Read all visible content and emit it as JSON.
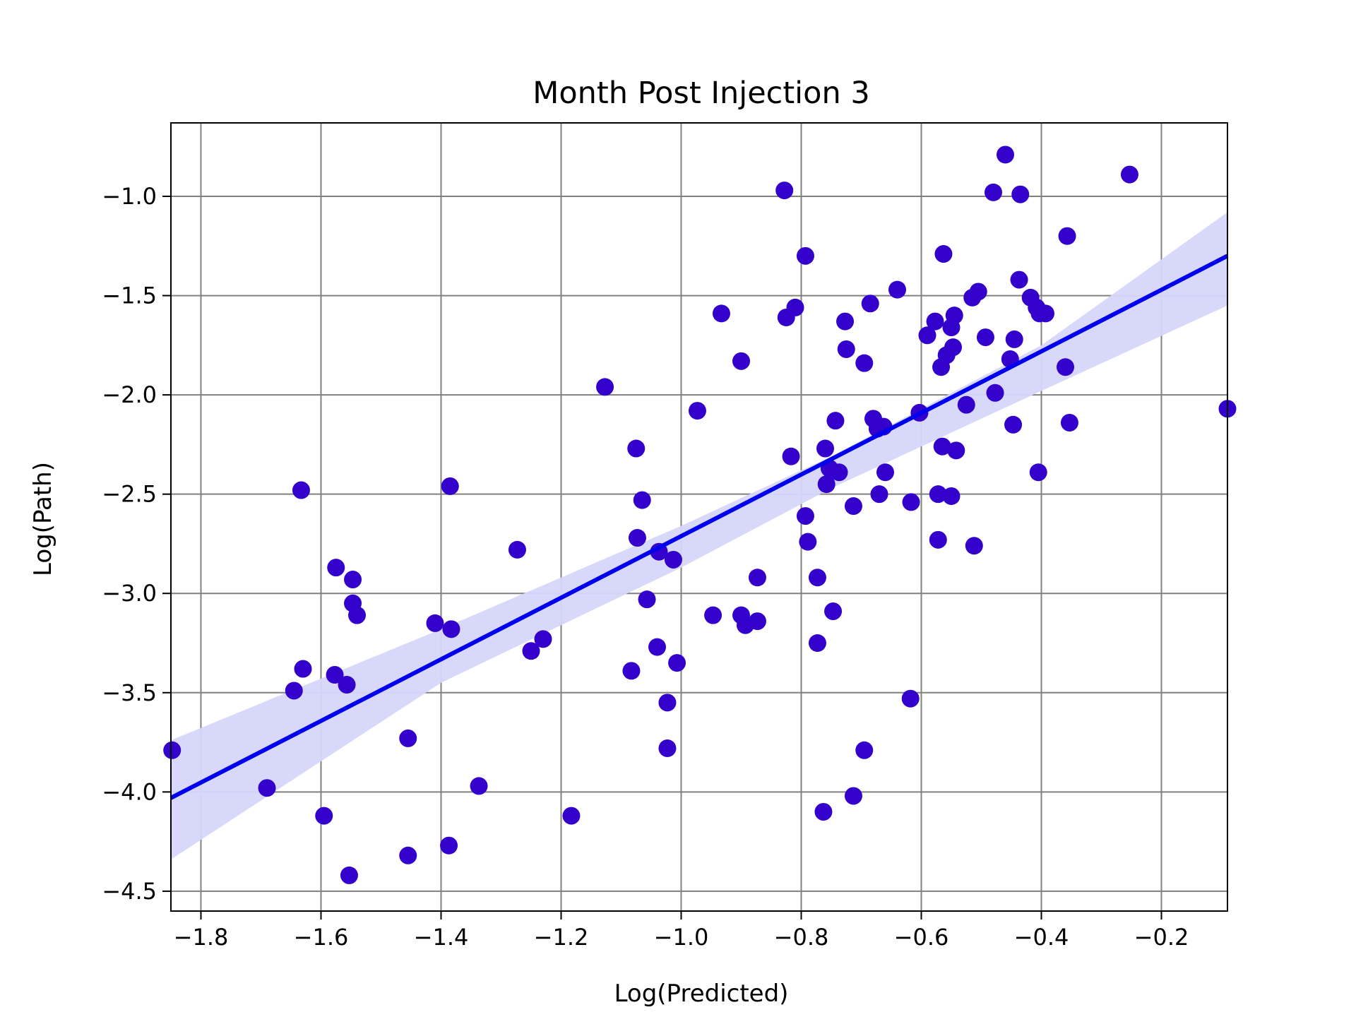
{
  "chart_data": {
    "type": "scatter",
    "title": "Month Post Injection 3",
    "xlabel": "Log(Predicted)",
    "ylabel": "Log(Path)",
    "xlim": [
      -1.85,
      -0.09
    ],
    "ylim": [
      -4.6,
      -0.63
    ],
    "xticks": [
      -1.8,
      -1.6,
      -1.4,
      -1.2,
      -1.0,
      -0.8,
      -0.6,
      -0.4,
      -0.2
    ],
    "xtick_labels": [
      "−1.8",
      "−1.6",
      "−1.4",
      "−1.2",
      "−1.0",
      "−0.8",
      "−0.6",
      "−0.4",
      "−0.2"
    ],
    "yticks": [
      -1.0,
      -1.5,
      -2.0,
      -2.5,
      -3.0,
      -3.5,
      -4.0,
      -4.5
    ],
    "ytick_labels": [
      "−1.0",
      "−1.5",
      "−2.0",
      "−2.5",
      "−3.0",
      "−3.5",
      "−4.0",
      "−4.5"
    ],
    "grid": true,
    "colors": {
      "points": "#3300cc",
      "fit_line": "#0000ee",
      "band": "#d6d6fb",
      "grid": "#808080"
    },
    "fit_line": {
      "x": [
        -1.85,
        -0.09
      ],
      "y": [
        -4.03,
        -1.3
      ]
    },
    "confidence_band": {
      "x": [
        -1.85,
        -1.4,
        -1.0,
        -0.75,
        -0.6,
        -0.4,
        -0.09
      ],
      "upper": [
        -3.74,
        -3.18,
        -2.66,
        -2.31,
        -2.07,
        -1.75,
        -1.08
      ],
      "lower": [
        -4.34,
        -3.45,
        -2.87,
        -2.47,
        -2.26,
        -1.98,
        -1.55
      ]
    },
    "points": [
      {
        "x": -1.848,
        "y": -3.79
      },
      {
        "x": -1.69,
        "y": -3.98
      },
      {
        "x": -1.645,
        "y": -3.49
      },
      {
        "x": -1.633,
        "y": -2.48
      },
      {
        "x": -1.63,
        "y": -3.38
      },
      {
        "x": -1.595,
        "y": -4.12
      },
      {
        "x": -1.577,
        "y": -3.41
      },
      {
        "x": -1.575,
        "y": -2.87
      },
      {
        "x": -1.557,
        "y": -3.46
      },
      {
        "x": -1.553,
        "y": -4.42
      },
      {
        "x": -1.547,
        "y": -2.93
      },
      {
        "x": -1.547,
        "y": -3.05
      },
      {
        "x": -1.54,
        "y": -3.11
      },
      {
        "x": -1.455,
        "y": -3.73
      },
      {
        "x": -1.455,
        "y": -4.32
      },
      {
        "x": -1.41,
        "y": -3.15
      },
      {
        "x": -1.387,
        "y": -4.27
      },
      {
        "x": -1.385,
        "y": -2.46
      },
      {
        "x": -1.383,
        "y": -3.18
      },
      {
        "x": -1.337,
        "y": -3.97
      },
      {
        "x": -1.273,
        "y": -2.78
      },
      {
        "x": -1.25,
        "y": -3.29
      },
      {
        "x": -1.23,
        "y": -3.23
      },
      {
        "x": -1.183,
        "y": -4.12
      },
      {
        "x": -1.127,
        "y": -1.96
      },
      {
        "x": -1.083,
        "y": -3.39
      },
      {
        "x": -1.075,
        "y": -2.27
      },
      {
        "x": -1.073,
        "y": -2.72
      },
      {
        "x": -1.065,
        "y": -2.53
      },
      {
        "x": -1.057,
        "y": -3.03
      },
      {
        "x": -1.04,
        "y": -3.27
      },
      {
        "x": -1.037,
        "y": -2.79
      },
      {
        "x": -1.023,
        "y": -3.55
      },
      {
        "x": -1.023,
        "y": -3.78
      },
      {
        "x": -1.013,
        "y": -2.83
      },
      {
        "x": -1.007,
        "y": -3.35
      },
      {
        "x": -0.973,
        "y": -2.08
      },
      {
        "x": -0.947,
        "y": -3.11
      },
      {
        "x": -0.933,
        "y": -1.59
      },
      {
        "x": -0.9,
        "y": -1.83
      },
      {
        "x": -0.9,
        "y": -3.11
      },
      {
        "x": -0.893,
        "y": -3.16
      },
      {
        "x": -0.873,
        "y": -2.92
      },
      {
        "x": -0.873,
        "y": -3.14
      },
      {
        "x": -0.828,
        "y": -0.97
      },
      {
        "x": -0.825,
        "y": -1.61
      },
      {
        "x": -0.817,
        "y": -2.31
      },
      {
        "x": -0.81,
        "y": -1.56
      },
      {
        "x": -0.793,
        "y": -1.3
      },
      {
        "x": -0.793,
        "y": -2.61
      },
      {
        "x": -0.789,
        "y": -2.74
      },
      {
        "x": -0.773,
        "y": -2.92
      },
      {
        "x": -0.773,
        "y": -3.25
      },
      {
        "x": -0.763,
        "y": -4.1
      },
      {
        "x": -0.76,
        "y": -2.27
      },
      {
        "x": -0.758,
        "y": -2.45
      },
      {
        "x": -0.753,
        "y": -2.37
      },
      {
        "x": -0.747,
        "y": -3.09
      },
      {
        "x": -0.743,
        "y": -2.13
      },
      {
        "x": -0.737,
        "y": -2.39
      },
      {
        "x": -0.727,
        "y": -1.63
      },
      {
        "x": -0.725,
        "y": -1.77
      },
      {
        "x": -0.713,
        "y": -2.56
      },
      {
        "x": -0.713,
        "y": -4.02
      },
      {
        "x": -0.695,
        "y": -1.84
      },
      {
        "x": -0.695,
        "y": -3.79
      },
      {
        "x": -0.685,
        "y": -1.54
      },
      {
        "x": -0.68,
        "y": -2.12
      },
      {
        "x": -0.673,
        "y": -2.17
      },
      {
        "x": -0.67,
        "y": -2.5
      },
      {
        "x": -0.663,
        "y": -2.16
      },
      {
        "x": -0.66,
        "y": -2.39
      },
      {
        "x": -0.64,
        "y": -1.47
      },
      {
        "x": -0.618,
        "y": -3.53
      },
      {
        "x": -0.617,
        "y": -2.54
      },
      {
        "x": -0.603,
        "y": -2.09
      },
      {
        "x": -0.59,
        "y": -1.7
      },
      {
        "x": -0.577,
        "y": -1.63
      },
      {
        "x": -0.572,
        "y": -2.73
      },
      {
        "x": -0.572,
        "y": -2.5
      },
      {
        "x": -0.567,
        "y": -1.86
      },
      {
        "x": -0.565,
        "y": -2.26
      },
      {
        "x": -0.563,
        "y": -1.29
      },
      {
        "x": -0.558,
        "y": -1.8
      },
      {
        "x": -0.55,
        "y": -1.66
      },
      {
        "x": -0.55,
        "y": -2.51
      },
      {
        "x": -0.547,
        "y": -1.76
      },
      {
        "x": -0.545,
        "y": -1.6
      },
      {
        "x": -0.542,
        "y": -2.28
      },
      {
        "x": -0.525,
        "y": -2.05
      },
      {
        "x": -0.515,
        "y": -1.51
      },
      {
        "x": -0.512,
        "y": -2.76
      },
      {
        "x": -0.505,
        "y": -1.48
      },
      {
        "x": -0.493,
        "y": -1.71
      },
      {
        "x": -0.48,
        "y": -0.98
      },
      {
        "x": -0.477,
        "y": -1.99
      },
      {
        "x": -0.46,
        "y": -0.79
      },
      {
        "x": -0.452,
        "y": -1.82
      },
      {
        "x": -0.447,
        "y": -2.15
      },
      {
        "x": -0.445,
        "y": -1.72
      },
      {
        "x": -0.437,
        "y": -1.42
      },
      {
        "x": -0.435,
        "y": -0.99
      },
      {
        "x": -0.418,
        "y": -1.51
      },
      {
        "x": -0.408,
        "y": -1.56
      },
      {
        "x": -0.405,
        "y": -2.39
      },
      {
        "x": -0.403,
        "y": -1.59
      },
      {
        "x": -0.393,
        "y": -1.59
      },
      {
        "x": -0.36,
        "y": -1.86
      },
      {
        "x": -0.357,
        "y": -1.2
      },
      {
        "x": -0.353,
        "y": -2.14
      },
      {
        "x": -0.253,
        "y": -0.89
      },
      {
        "x": -0.09,
        "y": -2.07
      }
    ]
  }
}
